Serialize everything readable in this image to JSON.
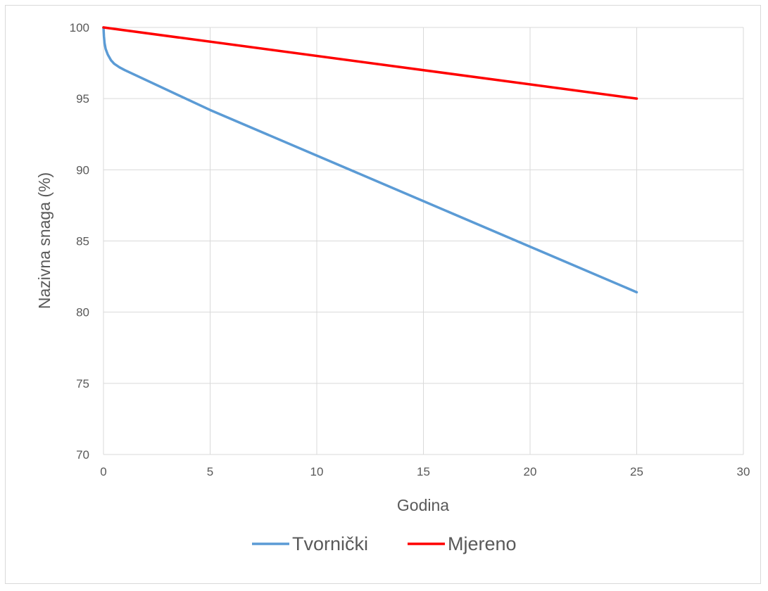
{
  "chart_data": {
    "type": "line",
    "title": "",
    "xlabel": "Godina",
    "ylabel": "Nazivna snaga (%)",
    "xlim": [
      0,
      30
    ],
    "ylim": [
      70,
      100
    ],
    "x_ticks": [
      0,
      5,
      10,
      15,
      20,
      25,
      30
    ],
    "y_ticks": [
      70,
      75,
      80,
      85,
      90,
      95,
      100
    ],
    "grid": true,
    "legend_position": "bottom",
    "series": [
      {
        "name": "Tvornički",
        "color": "#5b9bd5",
        "points": [
          [
            0,
            100
          ],
          [
            0.02,
            99.4
          ],
          [
            0.05,
            98.9
          ],
          [
            0.1,
            98.5
          ],
          [
            0.2,
            98.1
          ],
          [
            0.35,
            97.7
          ],
          [
            0.5,
            97.45
          ],
          [
            0.75,
            97.2
          ],
          [
            1,
            97.0
          ],
          [
            5,
            94.2
          ],
          [
            10,
            91.0
          ],
          [
            15,
            87.8
          ],
          [
            20,
            84.6
          ],
          [
            25,
            81.4
          ]
        ]
      },
      {
        "name": "Mjereno",
        "color": "#ff0000",
        "points": [
          [
            0,
            100
          ],
          [
            25,
            95
          ]
        ]
      }
    ]
  }
}
